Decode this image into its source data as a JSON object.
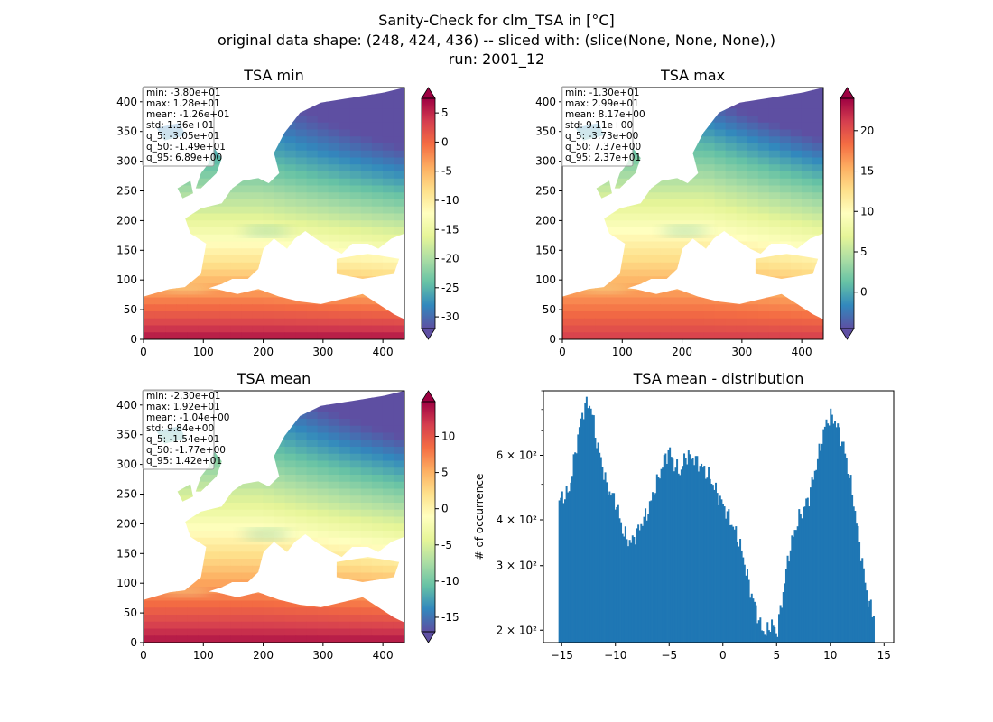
{
  "figure": {
    "suptitle_lines": [
      "Sanity-Check for clm_TSA in [°C]",
      "original data shape: (248, 424, 436) -- sliced with: (slice(None, None, None),)",
      "run: 2001_12"
    ]
  },
  "panels": [
    {
      "id": "min",
      "title": "TSA min",
      "stats": [
        "min: -3.80e+01",
        "max: 1.28e+01",
        "mean: -1.26e+01",
        "std: 1.36e+01",
        "q_5: -3.05e+01",
        "q_50: -1.49e+01",
        "q_95: 6.89e+00"
      ],
      "xticks": [
        "0",
        "100",
        "200",
        "300",
        "400"
      ],
      "yticks": [
        "0",
        "50",
        "100",
        "150",
        "200",
        "250",
        "300",
        "350",
        "400"
      ],
      "colorbar": {
        "vmin": -32,
        "vmax": 7.5,
        "ticks": [
          "-30",
          "-25",
          "-20",
          "-15",
          "-10",
          "-5",
          "0",
          "5"
        ],
        "tick_values": [
          -30,
          -25,
          -20,
          -15,
          -10,
          -5,
          0,
          5
        ]
      }
    },
    {
      "id": "max",
      "title": "TSA max",
      "stats": [
        "min: -1.30e+01",
        "max: 2.99e+01",
        "mean: 8.17e+00",
        "std: 9.11e+00",
        "q_5: -3.73e+00",
        "q_50: 7.37e+00",
        "q_95: 2.37e+01"
      ],
      "xticks": [
        "0",
        "100",
        "200",
        "300",
        "400"
      ],
      "yticks": [
        "0",
        "50",
        "100",
        "150",
        "200",
        "250",
        "300",
        "350",
        "400"
      ],
      "colorbar": {
        "vmin": -4.5,
        "vmax": 24,
        "ticks": [
          "0",
          "5",
          "10",
          "15",
          "20"
        ],
        "tick_values": [
          0,
          5,
          10,
          15,
          20
        ]
      }
    },
    {
      "id": "mean",
      "title": "TSA mean",
      "stats": [
        "min: -2.30e+01",
        "max: 1.92e+01",
        "mean: -1.04e+00",
        "std: 9.84e+00",
        "q_5: -1.54e+01",
        "q_50: -1.77e+00",
        "q_95: 1.42e+01"
      ],
      "xticks": [
        "0",
        "100",
        "200",
        "300",
        "400"
      ],
      "yticks": [
        "0",
        "50",
        "100",
        "150",
        "200",
        "250",
        "300",
        "350",
        "400"
      ],
      "colorbar": {
        "vmin": -17,
        "vmax": 14.8,
        "ticks": [
          "-15",
          "-10",
          "-5",
          "0",
          "5",
          "10"
        ],
        "tick_values": [
          -15,
          -10,
          -5,
          0,
          5,
          10
        ]
      }
    }
  ],
  "chart_data": {
    "type": "bar",
    "title": "TSA mean - distribution",
    "xlabel": "",
    "ylabel": "# of occurrence",
    "yscale": "log",
    "xlim": [
      -16.7,
      15.9
    ],
    "ylim": [
      185,
      900
    ],
    "xticks": [
      "−15",
      "−10",
      "−5",
      "0",
      "5",
      "10",
      "15"
    ],
    "xtick_values": [
      -15,
      -10,
      -5,
      0,
      5,
      10,
      15
    ],
    "ytick_labels": [
      "2 × 10²",
      "3 × 10²",
      "4 × 10²",
      "6 × 10²"
    ],
    "ytick_values": [
      200,
      300,
      400,
      600
    ],
    "bar_color": "#1f77b4",
    "series": [
      {
        "x": [
          -15.3,
          -14.3,
          -13.7,
          -13.3,
          -12.8,
          -12.3,
          -11.8,
          -10.8,
          -10.0,
          -9.3,
          -8.6,
          -8.0,
          -7.0,
          -6.0,
          -5.4,
          -5.0,
          -4.5,
          -3.9,
          -3.5,
          -2.8,
          -2.0,
          -1.2,
          -0.5,
          0.5,
          1.5,
          2.5,
          3.5,
          4.0,
          4.5,
          5.0,
          5.5,
          6.2,
          7.0,
          8.0,
          8.8,
          9.5,
          10.0,
          10.5,
          11.2,
          12.0,
          12.5,
          13.0,
          13.5,
          14.1
        ],
        "values": [
          450,
          480,
          620,
          730,
          830,
          820,
          660,
          490,
          450,
          370,
          345,
          370,
          420,
          520,
          590,
          620,
          560,
          540,
          600,
          590,
          560,
          520,
          470,
          410,
          350,
          260,
          205,
          195,
          210,
          195,
          240,
          330,
          400,
          460,
          580,
          720,
          770,
          740,
          640,
          480,
          380,
          300,
          240,
          220
        ]
      }
    ]
  }
}
